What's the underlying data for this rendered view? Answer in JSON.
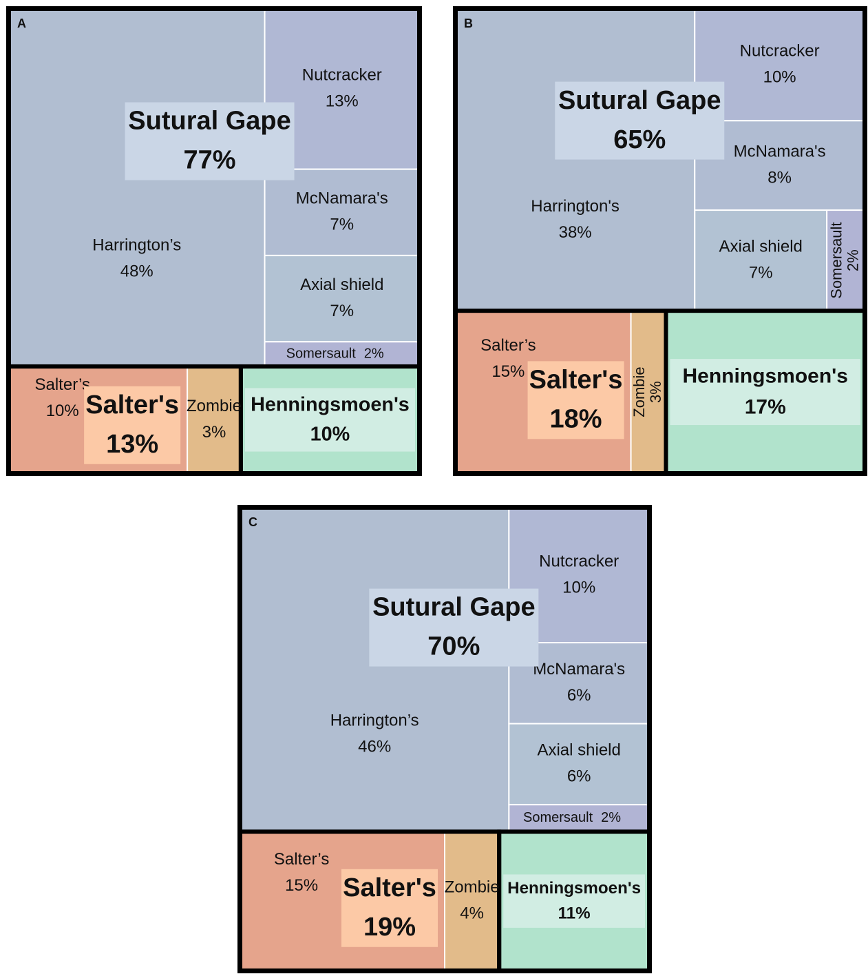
{
  "chart_data": [
    {
      "type": "treemap",
      "panel": "A",
      "groups": [
        {
          "name": "Sutural Gape",
          "value": 77,
          "value_label": "77%",
          "label_color": "#cad6e6",
          "children": [
            {
              "name": "Harrington’s",
              "value": 48,
              "value_label": "48%",
              "color": "#b1bed1"
            },
            {
              "name": "Nutcracker",
              "value": 13,
              "value_label": "13%",
              "color": "#b0b8d4"
            },
            {
              "name": "McNamara's",
              "value": 7,
              "value_label": "7%",
              "color": "#b0bcd2"
            },
            {
              "name": "Axial shield",
              "value": 7,
              "value_label": "7%",
              "color": "#b2c2d3"
            },
            {
              "name": "Somersault",
              "value": 2,
              "value_label": "2%",
              "color": "#b1b4d4"
            }
          ]
        },
        {
          "name": "Salter's",
          "value": 13,
          "value_label": "13%",
          "label_color": "#fcc9a6",
          "children": [
            {
              "name": "Salter’s",
              "value": 10,
              "value_label": "10%",
              "color": "#e5a48c"
            },
            {
              "name": "Zombie",
              "value": 3,
              "value_label": "3%",
              "color": "#e2bb8a"
            }
          ]
        },
        {
          "name": "Henningsmoen's",
          "value": 10,
          "value_label": "10%",
          "color": "#b1e3cc",
          "label_color": "#d1ede3"
        }
      ]
    },
    {
      "type": "treemap",
      "panel": "B",
      "groups": [
        {
          "name": "Sutural Gape",
          "value": 65,
          "value_label": "65%",
          "label_color": "#cad6e6",
          "children": [
            {
              "name": "Harrington's",
              "value": 38,
              "value_label": "38%",
              "color": "#b1bed1"
            },
            {
              "name": "Nutcracker",
              "value": 10,
              "value_label": "10%",
              "color": "#b0b8d4"
            },
            {
              "name": "McNamara's",
              "value": 8,
              "value_label": "8%",
              "color": "#b0bcd2"
            },
            {
              "name": "Axial shield",
              "value": 7,
              "value_label": "7%",
              "color": "#b2c2d3"
            },
            {
              "name": "Somersault",
              "value": 2,
              "value_label": "2%",
              "color": "#b1b4d4"
            }
          ]
        },
        {
          "name": "Salter's",
          "value": 18,
          "value_label": "18%",
          "label_color": "#fcc9a6",
          "children": [
            {
              "name": "Salter’s",
              "value": 15,
              "value_label": "15%",
              "color": "#e5a48c"
            },
            {
              "name": "Zombie",
              "value": 3,
              "value_label": "3%",
              "color": "#e2bb8a"
            }
          ]
        },
        {
          "name": "Henningsmoen's",
          "value": 17,
          "value_label": "17%",
          "color": "#b1e3cc",
          "label_color": "#d1ede3"
        }
      ]
    },
    {
      "type": "treemap",
      "panel": "C",
      "groups": [
        {
          "name": "Sutural Gape",
          "value": 70,
          "value_label": "70%",
          "label_color": "#cad6e6",
          "children": [
            {
              "name": "Harrington’s",
              "value": 46,
              "value_label": "46%",
              "color": "#b1bed1"
            },
            {
              "name": "Nutcracker",
              "value": 10,
              "value_label": "10%",
              "color": "#b0b8d4"
            },
            {
              "name": "McNamara's",
              "value": 6,
              "value_label": "6%",
              "color": "#b0bcd2"
            },
            {
              "name": "Axial shield",
              "value": 6,
              "value_label": "6%",
              "color": "#b2c2d3"
            },
            {
              "name": "Somersault",
              "value": 2,
              "value_label": "2%",
              "color": "#b1b4d4"
            }
          ]
        },
        {
          "name": "Salter's",
          "value": 19,
          "value_label": "19%",
          "label_color": "#fcc9a6",
          "children": [
            {
              "name": "Salter’s",
              "value": 15,
              "value_label": "15%",
              "color": "#e5a48c"
            },
            {
              "name": "Zombie",
              "value": 4,
              "value_label": "4%",
              "color": "#e2bb8a"
            }
          ]
        },
        {
          "name": "Henningsmoen's",
          "value": 11,
          "value_label": "11%",
          "color": "#b1e3cc",
          "label_color": "#d1ede3"
        }
      ]
    }
  ]
}
